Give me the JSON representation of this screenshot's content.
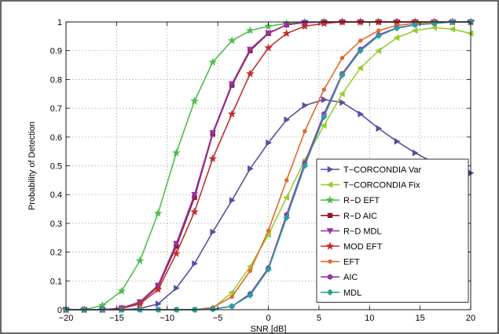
{
  "chart_data": {
    "type": "line",
    "title": "",
    "xlabel": "SNR [dB]",
    "ylabel": "Probability of Detection",
    "xlim": [
      -20,
      20
    ],
    "ylim": [
      0,
      1
    ],
    "xticks": [
      -20,
      -15,
      -10,
      -5,
      0,
      5,
      10,
      15,
      20
    ],
    "yticks": [
      0,
      0.1,
      0.2,
      0.3,
      0.4,
      0.5,
      0.6,
      0.7,
      0.8,
      0.9,
      1
    ],
    "grid": true,
    "legend_position": "bottom-right",
    "series": [
      {
        "name": "T−CORCONDIA Var",
        "color": "#5b4ea4",
        "marker": "triangle-right",
        "x": [
          -20,
          -18.2,
          -16.4,
          -14.5,
          -12.7,
          -10.9,
          -9.1,
          -7.3,
          -5.5,
          -3.6,
          -1.8,
          0,
          1.8,
          3.6,
          5.5,
          7.3,
          9.1,
          10.9,
          12.7,
          14.5,
          16.4,
          18.2,
          20
        ],
        "y": [
          0,
          0,
          0,
          0,
          0.004,
          0.02,
          0.075,
          0.16,
          0.27,
          0.38,
          0.49,
          0.58,
          0.66,
          0.71,
          0.73,
          0.72,
          0.68,
          0.63,
          0.585,
          0.545,
          0.51,
          0.49,
          0.475
        ]
      },
      {
        "name": "T−CORCONDIA Fix",
        "color": "#99cc33",
        "marker": "triangle-left",
        "x": [
          -20,
          -18.2,
          -16.4,
          -14.5,
          -12.7,
          -10.9,
          -9.1,
          -7.3,
          -5.5,
          -3.6,
          -1.8,
          0,
          1.8,
          3.6,
          5.5,
          7.3,
          9.1,
          10.9,
          12.7,
          14.5,
          16.4,
          18.2,
          20
        ],
        "y": [
          0,
          0,
          0,
          0,
          0,
          0,
          0,
          0,
          0.005,
          0.06,
          0.15,
          0.26,
          0.39,
          0.52,
          0.64,
          0.75,
          0.84,
          0.9,
          0.945,
          0.97,
          0.98,
          0.975,
          0.96
        ]
      },
      {
        "name": "R−D EFT",
        "color": "#4dbf4d",
        "marker": "star",
        "x": [
          -20,
          -18.2,
          -16.4,
          -14.5,
          -12.7,
          -10.9,
          -9.1,
          -7.3,
          -5.5,
          -3.6,
          -1.8,
          0,
          1.8,
          3.6,
          5.5,
          7.3,
          9.1,
          10.9,
          12.7,
          14.5,
          16.4,
          18.2,
          20
        ],
        "y": [
          0,
          0,
          0.015,
          0.065,
          0.17,
          0.335,
          0.545,
          0.725,
          0.86,
          0.935,
          0.97,
          0.985,
          0.995,
          1,
          1,
          1,
          1,
          1,
          1,
          1,
          1,
          1,
          1
        ]
      },
      {
        "name": "R−D AIC",
        "color": "#8b1a2b",
        "marker": "square",
        "x": [
          -20,
          -18.2,
          -16.4,
          -14.5,
          -12.7,
          -10.9,
          -9.1,
          -7.3,
          -5.5,
          -3.6,
          -1.8,
          0,
          1.8,
          3.6,
          5.5,
          7.3,
          9.1,
          10.9,
          12.7,
          14.5,
          16.4,
          18.2,
          20
        ],
        "y": [
          0,
          0,
          0,
          0.005,
          0.025,
          0.08,
          0.22,
          0.39,
          0.61,
          0.78,
          0.9,
          0.96,
          0.99,
          0.998,
          1,
          1,
          1,
          1,
          1,
          1,
          1,
          1,
          1
        ]
      },
      {
        "name": "R−D MDL",
        "color": "#9932a8",
        "marker": "triangle-down",
        "x": [
          -20,
          -18.2,
          -16.4,
          -14.5,
          -12.7,
          -10.9,
          -9.1,
          -7.3,
          -5.5,
          -3.6,
          -1.8,
          0,
          1.8,
          3.6,
          5.5,
          7.3,
          9.1,
          10.9,
          12.7,
          14.5,
          16.4,
          18.2,
          20
        ],
        "y": [
          0,
          0,
          0,
          0.006,
          0.027,
          0.085,
          0.23,
          0.4,
          0.615,
          0.785,
          0.905,
          0.962,
          0.99,
          0.998,
          1,
          1,
          1,
          1,
          1,
          1,
          1,
          1,
          1
        ]
      },
      {
        "name": "MOD EFT",
        "color": "#c03030",
        "marker": "star",
        "x": [
          -20,
          -18.2,
          -16.4,
          -14.5,
          -12.7,
          -10.9,
          -9.1,
          -7.3,
          -5.5,
          -3.6,
          -1.8,
          0,
          1.8,
          3.6,
          5.5,
          7.3,
          9.1,
          10.9,
          12.7,
          14.5,
          16.4,
          18.2,
          20
        ],
        "y": [
          0,
          0,
          0,
          0.004,
          0.02,
          0.07,
          0.195,
          0.34,
          0.525,
          0.68,
          0.82,
          0.91,
          0.96,
          0.985,
          0.995,
          1,
          1,
          1,
          1,
          1,
          1,
          1,
          1
        ]
      },
      {
        "name": "EFT",
        "color": "#e0692a",
        "marker": "dot",
        "x": [
          -20,
          -18.2,
          -16.4,
          -14.5,
          -12.7,
          -10.9,
          -9.1,
          -7.3,
          -5.5,
          -3.6,
          -1.8,
          0,
          1.8,
          3.6,
          5.5,
          7.3,
          9.1,
          10.9,
          12.7,
          14.5,
          16.4,
          18.2,
          20
        ],
        "y": [
          0,
          0,
          0,
          0,
          0,
          0,
          0,
          0,
          0.008,
          0.045,
          0.135,
          0.275,
          0.45,
          0.62,
          0.765,
          0.875,
          0.935,
          0.97,
          0.988,
          0.995,
          1,
          1,
          1
        ]
      },
      {
        "name": "AIC",
        "color": "#9932a8",
        "marker": "circle",
        "x": [
          -20,
          -18.2,
          -16.4,
          -14.5,
          -12.7,
          -10.9,
          -9.1,
          -7.3,
          -5.5,
          -3.6,
          -1.8,
          0,
          1.8,
          3.6,
          5.5,
          7.3,
          9.1,
          10.9,
          12.7,
          14.5,
          16.4,
          18.2,
          20
        ],
        "y": [
          0,
          0,
          0,
          0,
          0,
          0,
          0,
          0,
          0.002,
          0.012,
          0.055,
          0.145,
          0.33,
          0.51,
          0.68,
          0.82,
          0.905,
          0.955,
          0.98,
          0.99,
          0.995,
          1,
          1
        ]
      },
      {
        "name": "MDL",
        "color": "#2a9f9f",
        "marker": "diamond",
        "x": [
          -20,
          -18.2,
          -16.4,
          -14.5,
          -12.7,
          -10.9,
          -9.1,
          -7.3,
          -5.5,
          -3.6,
          -1.8,
          0,
          1.8,
          3.6,
          5.5,
          7.3,
          9.1,
          10.9,
          12.7,
          14.5,
          16.4,
          18.2,
          20
        ],
        "y": [
          0,
          0,
          0,
          0,
          0,
          0,
          0,
          0,
          0.002,
          0.012,
          0.05,
          0.14,
          0.32,
          0.5,
          0.67,
          0.815,
          0.9,
          0.952,
          0.978,
          0.99,
          0.995,
          1,
          1
        ]
      }
    ]
  }
}
